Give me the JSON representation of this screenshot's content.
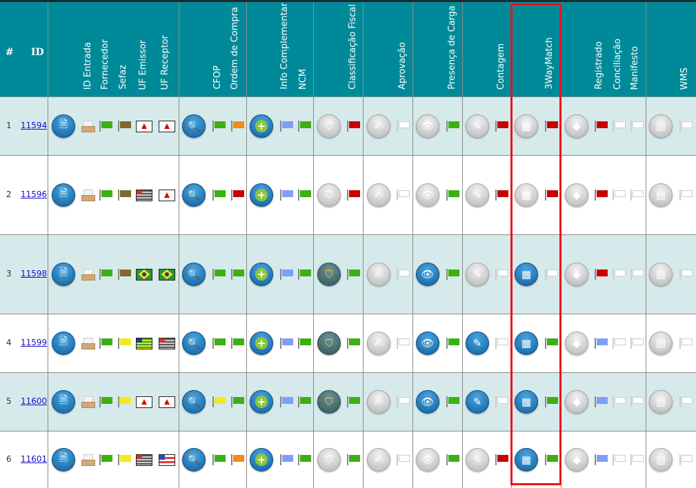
{
  "header": {
    "num": "#",
    "id": "ID",
    "columns": [
      "ID Entrada",
      "Fornecedor",
      "Sefaz",
      "UF Emissor",
      "UF Receptor",
      "CFOP",
      "Ordem de Compra",
      "Info Complementar",
      "NCM",
      "Classificação Fiscal",
      "Aprovação",
      "Presença de Carga",
      "Contagem",
      "3WayMatch",
      "Registrado",
      "Conciliação",
      "Manifesto",
      "WMS"
    ]
  },
  "colors": {
    "header": "#008a99",
    "row_alt": "#d7eaeb",
    "highlight": "#e8141a",
    "flags": {
      "green": "#3cb012",
      "brown": "#7d6a2c",
      "yellow": "#f2ea1e",
      "orange": "#f28a1a",
      "red": "#c80000",
      "blue": "#7f9ef7"
    }
  },
  "rows": [
    {
      "n": "1",
      "id": "11594",
      "fornecedor": "brown",
      "sefaz": "green",
      "uf_emissor": "MG",
      "uf_receptor": "MG",
      "cfop": "green",
      "ordem": "orange",
      "info": "blue",
      "ncm": "green",
      "class_active": false,
      "class_flag": "red",
      "aprov_flag": "white",
      "pres_active": false,
      "pres_flag": "green",
      "cont_active": false,
      "cont_flag": "red",
      "tw_active": false,
      "tw_flag": "red",
      "registrado": "red",
      "conciliacao": "white",
      "manifesto": "white",
      "wms_flag": "white"
    },
    {
      "n": "2",
      "id": "11596",
      "fornecedor": "brown",
      "sefaz": "green",
      "uf_emissor": "SP",
      "uf_receptor": "MG",
      "cfop": "green",
      "ordem": "red",
      "info": "blue",
      "ncm": "green",
      "class_active": false,
      "class_flag": "red",
      "aprov_flag": "white",
      "pres_active": false,
      "pres_flag": "green",
      "cont_active": false,
      "cont_flag": "red",
      "tw_active": false,
      "tw_flag": "red",
      "registrado": "red",
      "conciliacao": "white",
      "manifesto": "white",
      "wms_flag": "white"
    },
    {
      "n": "3",
      "id": "11598",
      "fornecedor": "brown",
      "sefaz": "green",
      "uf_emissor": "BR",
      "uf_receptor": "BR",
      "cfop": "green",
      "ordem": "green",
      "info": "blue",
      "ncm": "green",
      "class_active": true,
      "class_flag": "green",
      "aprov_flag": "white",
      "pres_active": true,
      "pres_flag": "green",
      "cont_active": false,
      "cont_flag": "white",
      "tw_active": true,
      "tw_flag": "white",
      "registrado": "red",
      "conciliacao": "white",
      "manifesto": "white",
      "wms_flag": "white"
    },
    {
      "n": "4",
      "id": "11599",
      "fornecedor": "yellow",
      "sefaz": "green",
      "uf_emissor": "GO",
      "uf_receptor": "SP",
      "cfop": "green",
      "ordem": "green",
      "info": "blue",
      "ncm": "green",
      "class_active": true,
      "class_flag": "green",
      "aprov_flag": "white",
      "pres_active": true,
      "pres_flag": "green",
      "cont_active": true,
      "cont_flag": "white",
      "tw_active": true,
      "tw_flag": "green",
      "registrado": "blue",
      "conciliacao": "white",
      "manifesto": "white",
      "wms_flag": "white"
    },
    {
      "n": "5",
      "id": "11600",
      "fornecedor": "yellow",
      "sefaz": "green",
      "uf_emissor": "MG",
      "uf_receptor": "MG",
      "cfop": "yellow",
      "ordem": "green",
      "info": "blue",
      "ncm": "green",
      "class_active": true,
      "class_flag": "green",
      "aprov_flag": "white",
      "pres_active": true,
      "pres_flag": "green",
      "cont_active": true,
      "cont_flag": "white",
      "tw_active": true,
      "tw_flag": "green",
      "registrado": "blue",
      "conciliacao": "white",
      "manifesto": "white",
      "wms_flag": "white"
    },
    {
      "n": "6",
      "id": "11601",
      "fornecedor": "yellow",
      "sefaz": "green",
      "uf_emissor": "SP",
      "uf_receptor": "BA",
      "cfop": "green",
      "ordem": "orange",
      "info": "blue",
      "ncm": "green",
      "class_active": false,
      "class_flag": "green",
      "aprov_flag": "white",
      "pres_active": false,
      "pres_flag": "green",
      "cont_active": false,
      "cont_flag": "red",
      "tw_active": true,
      "tw_flag": "green",
      "registrado": "blue",
      "conciliacao": "white",
      "manifesto": "white",
      "wms_flag": "white"
    }
  ]
}
